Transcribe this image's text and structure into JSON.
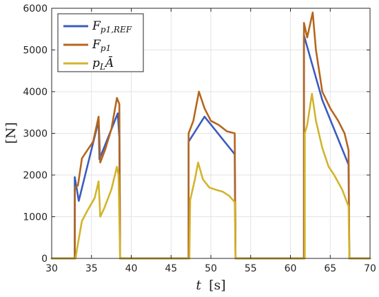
{
  "chart_data": {
    "type": "line",
    "xlabel_var": "t",
    "xlabel_unit": "[s]",
    "ylabel": "[N]",
    "xlim": [
      30,
      70
    ],
    "ylim": [
      0,
      6000
    ],
    "x_ticks": [
      30,
      35,
      40,
      45,
      50,
      55,
      60,
      65,
      70
    ],
    "y_ticks": [
      0,
      1000,
      2000,
      3000,
      4000,
      5000,
      6000
    ],
    "grid": true,
    "legend_position": "top-left",
    "series": [
      {
        "name": "F_p1,REF",
        "legend_html": "F<tspan font-size='12' dy='4'>p1,REF</tspan>",
        "color": "#3a5bbf",
        "points": [
          [
            30,
            0
          ],
          [
            32.9,
            0
          ],
          [
            32.9,
            1950
          ],
          [
            33.4,
            1380
          ],
          [
            35.9,
            3300
          ],
          [
            36.0,
            2380
          ],
          [
            38.3,
            3480
          ],
          [
            38.5,
            2900
          ],
          [
            38.6,
            0
          ],
          [
            47.2,
            0
          ],
          [
            47.2,
            2800
          ],
          [
            49.2,
            3400
          ],
          [
            53.0,
            2500
          ],
          [
            53.1,
            0
          ],
          [
            61.7,
            0
          ],
          [
            61.7,
            5350
          ],
          [
            64.0,
            3800
          ],
          [
            67.3,
            2250
          ],
          [
            67.4,
            0
          ],
          [
            70,
            0
          ]
        ]
      },
      {
        "name": "F_p1",
        "legend_html": "F<tspan font-size='12' dy='4'>p1</tspan>",
        "color": "#b5651d",
        "points": [
          [
            30,
            0
          ],
          [
            32.9,
            0
          ],
          [
            32.9,
            1700
          ],
          [
            33.3,
            1750
          ],
          [
            33.8,
            2400
          ],
          [
            34.5,
            2600
          ],
          [
            35.2,
            2800
          ],
          [
            35.9,
            3400
          ],
          [
            36.1,
            2300
          ],
          [
            36.7,
            2600
          ],
          [
            37.5,
            3100
          ],
          [
            38.2,
            3850
          ],
          [
            38.5,
            3700
          ],
          [
            38.6,
            0
          ],
          [
            47.2,
            0
          ],
          [
            47.2,
            3000
          ],
          [
            47.8,
            3300
          ],
          [
            48.5,
            4000
          ],
          [
            49.2,
            3600
          ],
          [
            50.0,
            3300
          ],
          [
            51.0,
            3200
          ],
          [
            52.0,
            3050
          ],
          [
            53.0,
            3000
          ],
          [
            53.1,
            0
          ],
          [
            61.7,
            0
          ],
          [
            61.7,
            5650
          ],
          [
            62.1,
            5300
          ],
          [
            62.8,
            5900
          ],
          [
            63.2,
            5000
          ],
          [
            64.0,
            4000
          ],
          [
            65.0,
            3600
          ],
          [
            66.0,
            3300
          ],
          [
            66.8,
            3000
          ],
          [
            67.3,
            2600
          ],
          [
            67.4,
            0
          ],
          [
            70,
            0
          ]
        ]
      },
      {
        "name": "p_L Ā",
        "legend_html": "p<tspan font-size='12' dy='4'>L</tspan><tspan dy='-4'>Ā</tspan>",
        "color": "#d2b42a",
        "points": [
          [
            30,
            0
          ],
          [
            33.0,
            0
          ],
          [
            33.2,
            250
          ],
          [
            33.8,
            900
          ],
          [
            34.5,
            1150
          ],
          [
            35.4,
            1450
          ],
          [
            35.9,
            1850
          ],
          [
            36.1,
            1000
          ],
          [
            36.6,
            1200
          ],
          [
            37.5,
            1650
          ],
          [
            38.2,
            2200
          ],
          [
            38.4,
            2000
          ],
          [
            38.6,
            0
          ],
          [
            47.3,
            0
          ],
          [
            47.4,
            1400
          ],
          [
            48.0,
            1900
          ],
          [
            48.4,
            2300
          ],
          [
            49.0,
            1900
          ],
          [
            49.8,
            1700
          ],
          [
            50.6,
            1650
          ],
          [
            51.5,
            1600
          ],
          [
            52.3,
            1500
          ],
          [
            53.0,
            1350
          ],
          [
            53.1,
            0
          ],
          [
            61.8,
            0
          ],
          [
            61.8,
            3000
          ],
          [
            62.1,
            3200
          ],
          [
            62.7,
            3950
          ],
          [
            63.2,
            3300
          ],
          [
            64.0,
            2650
          ],
          [
            64.8,
            2200
          ],
          [
            65.5,
            2000
          ],
          [
            66.5,
            1650
          ],
          [
            67.3,
            1250
          ],
          [
            67.4,
            0
          ],
          [
            70,
            0
          ]
        ]
      }
    ]
  }
}
